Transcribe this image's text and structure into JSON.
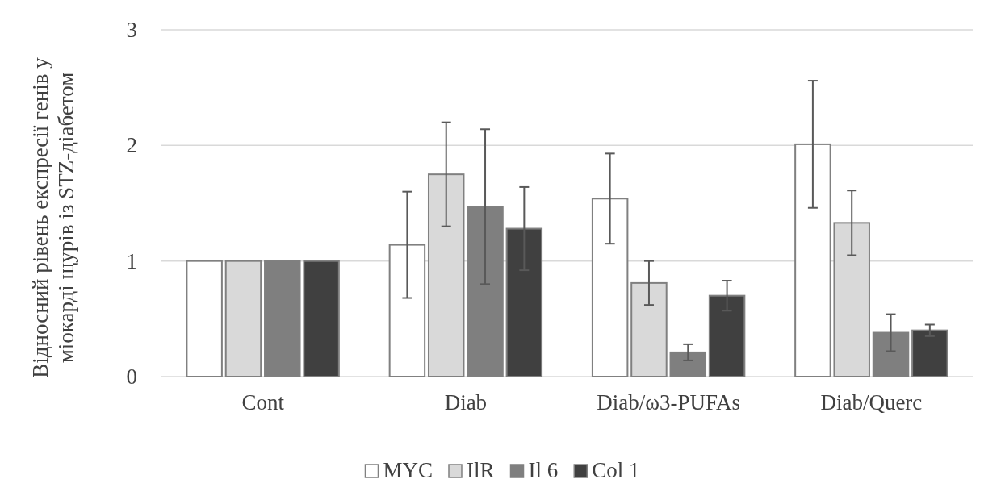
{
  "chart_data": {
    "type": "bar",
    "ylabel": "Відносний рівень експресії генів у міокарді щурів із STZ-діабетом",
    "categories": [
      "Cont",
      "Diab",
      "Diab/ω3-PUFAs",
      "Diab/Querc"
    ],
    "series": [
      {
        "name": "MYC",
        "color": "#ffffff",
        "values": [
          1,
          1.14,
          1.54,
          2.01
        ],
        "errors": [
          null,
          0.46,
          0.39,
          0.55
        ]
      },
      {
        "name": "IlR",
        "color": "#d9d9d9",
        "values": [
          1,
          1.75,
          0.81,
          1.33
        ],
        "errors": [
          null,
          0.45,
          0.19,
          0.28
        ]
      },
      {
        "name": "Il 6",
        "color": "#7f7f7f",
        "values": [
          1,
          1.47,
          0.21,
          0.38
        ],
        "errors": [
          null,
          0.67,
          0.07,
          0.16
        ]
      },
      {
        "name": "Col 1",
        "color": "#404040",
        "values": [
          1,
          1.28,
          0.7,
          0.4
        ],
        "errors": [
          null,
          0.36,
          0.13,
          0.05
        ]
      }
    ],
    "ylim": [
      0,
      3
    ],
    "yticks": [
      0,
      1,
      2,
      3
    ],
    "grid": "y",
    "legend": "bottom"
  }
}
